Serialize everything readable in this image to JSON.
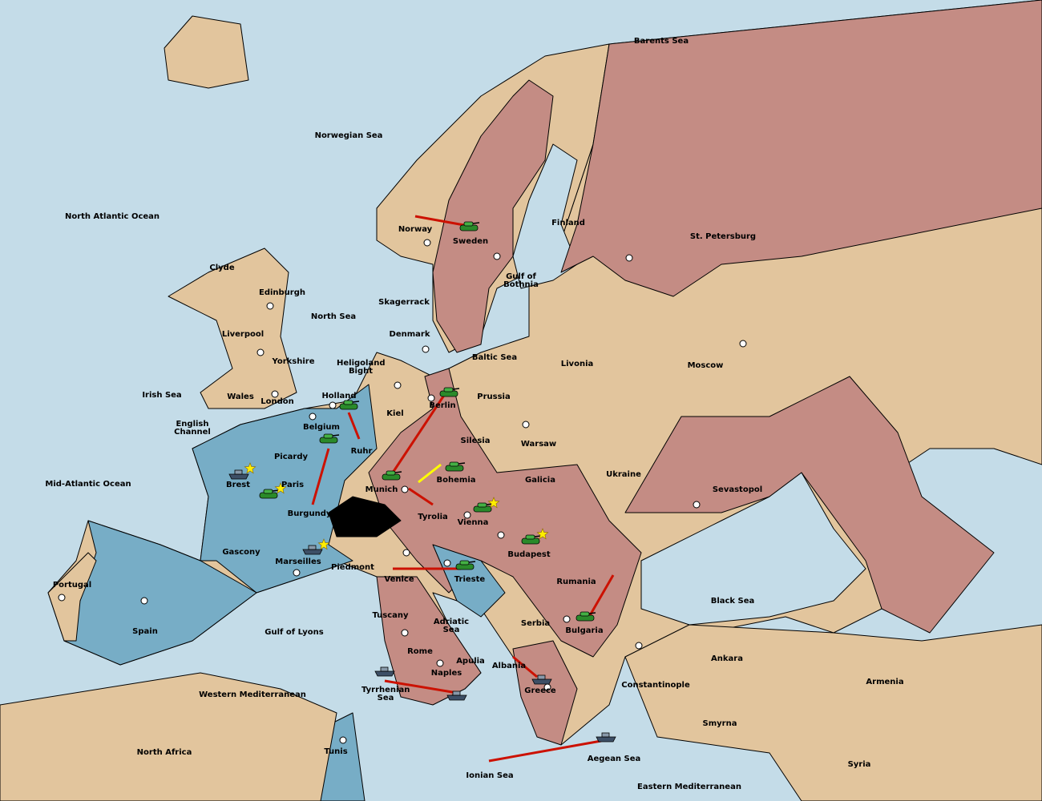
{
  "colors": {
    "sea": "#c4dce8",
    "neutral": "#e2c59d",
    "red_power": "#c48c84",
    "blue_power": "#77adc6",
    "impassable": "#000000",
    "order_arrow": "#cc1100",
    "support_arrow": "#ffff00"
  },
  "icons": {
    "army": "tank-icon",
    "fleet": "battleship-icon",
    "supply_center": "dot-icon",
    "home_marker": "star-icon"
  },
  "labels": [
    "Barents Sea",
    "Norwegian Sea",
    "North Atlantic Ocean",
    "Norway",
    "Sweden",
    "Finland",
    "St. Petersburg",
    "Gulf of Bothnia",
    "Clyde",
    "Edinburgh",
    "Skagerrack",
    "North Sea",
    "Denmark",
    "Liverpool",
    "Baltic Sea",
    "Livonia",
    "Moscow",
    "Yorkshire",
    "Heligoland Bight",
    "Irish Sea",
    "Wales",
    "Holland",
    "Prussia",
    "London",
    "Kiel",
    "Berlin",
    "English Channel",
    "Belgium",
    "Silesia",
    "Warsaw",
    "Picardy",
    "Ruhr",
    "Ukraine",
    "Mid-Atlantic Ocean",
    "Brest",
    "Paris",
    "Bohemia",
    "Galicia",
    "Sevastopol",
    "Munich",
    "Burgundy",
    "Tyrolia",
    "Vienna",
    "Gascony",
    "Budapest",
    "Marseilles",
    "Piedmont",
    "Portugal",
    "Venice",
    "Trieste",
    "Rumania",
    "Black Sea",
    "Tuscany",
    "Adriatic Sea",
    "Serbia",
    "Spain",
    "Gulf of Lyons",
    "Bulgaria",
    "Rome",
    "Apulia",
    "Ankara",
    "Albania",
    "Naples",
    "Armenia",
    "Constantinople",
    "Tyrrhenian Sea",
    "Greece",
    "Western Mediterranean",
    "Smyrna",
    "North Africa",
    "Tunis",
    "Aegean Sea",
    "Syria",
    "Ionian Sea",
    "Eastern Mediterranean"
  ]
}
